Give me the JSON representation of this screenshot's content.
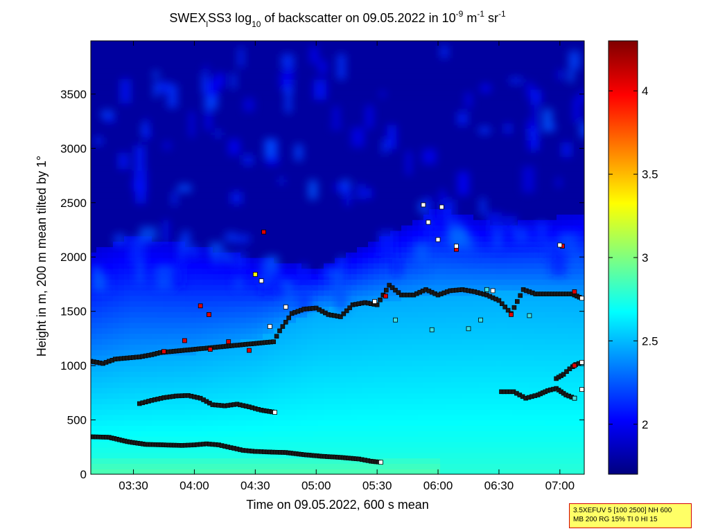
{
  "chart_data": {
    "type": "heatmap",
    "title": {
      "pre": "SWEX",
      "sub1": "l",
      "mid": "SS3 log",
      "sub2": "10",
      "mid2": " of backscatter on 09.05.2022 in 10",
      "sup1": "-9",
      "mid3": " m",
      "sup2": "-1",
      "mid4": " sr",
      "sup3": "-1"
    },
    "xlabel": "Time on 09.05.2022, 600 s mean",
    "ylabel": "Height in m, 200 m mean tilted by 1°",
    "x_range_hours": [
      3.15,
      7.2
    ],
    "y_range_m": [
      0,
      3990
    ],
    "x_ticks": [
      {
        "label": "03:30",
        "value": 3.5
      },
      {
        "label": "04:00",
        "value": 4.0
      },
      {
        "label": "04:30",
        "value": 4.5
      },
      {
        "label": "05:00",
        "value": 5.0
      },
      {
        "label": "05:30",
        "value": 5.5
      },
      {
        "label": "06:00",
        "value": 6.0
      },
      {
        "label": "06:30",
        "value": 6.5
      },
      {
        "label": "07:00",
        "value": 7.0
      }
    ],
    "y_ticks": [
      {
        "label": "0",
        "value": 0
      },
      {
        "label": "500",
        "value": 500
      },
      {
        "label": "1000",
        "value": 1000
      },
      {
        "label": "1500",
        "value": 1500
      },
      {
        "label": "2000",
        "value": 2000
      },
      {
        "label": "2500",
        "value": 2500
      },
      {
        "label": "3000",
        "value": 3000
      },
      {
        "label": "3500",
        "value": 3500
      }
    ],
    "colorbar": {
      "range": [
        1.7,
        4.3
      ],
      "ticks": [
        {
          "label": "2",
          "value": 2.0
        },
        {
          "label": "2.5",
          "value": 2.5
        },
        {
          "label": "3",
          "value": 3.0
        },
        {
          "label": "3.5",
          "value": 3.5
        },
        {
          "label": "4",
          "value": 4.0
        }
      ],
      "colormap": "jet"
    },
    "field_profile": {
      "comment_free_levels": true,
      "ground": {
        "height": 150,
        "value": 2.88
      },
      "boundary_layer_top": [
        {
          "t": 3.15,
          "h": 1000
        },
        {
          "t": 3.5,
          "h": 1080
        },
        {
          "t": 4.0,
          "h": 1120
        },
        {
          "t": 4.5,
          "h": 1250
        },
        {
          "t": 5.0,
          "h": 1500
        },
        {
          "t": 5.5,
          "h": 1600
        },
        {
          "t": 6.0,
          "h": 1650
        },
        {
          "t": 6.5,
          "h": 1680
        },
        {
          "t": 7.2,
          "h": 1650
        }
      ],
      "aerosol_top": [
        {
          "t": 3.15,
          "h": 2050
        },
        {
          "t": 3.5,
          "h": 2200
        },
        {
          "t": 4.0,
          "h": 2100
        },
        {
          "t": 4.5,
          "h": 2000
        },
        {
          "t": 5.0,
          "h": 1900
        },
        {
          "t": 5.5,
          "h": 2150
        },
        {
          "t": 6.0,
          "h": 2450
        },
        {
          "t": 6.5,
          "h": 2300
        },
        {
          "t": 7.2,
          "h": 2400
        }
      ]
    },
    "layers": [
      {
        "name": "lowest",
        "color": "#1a1a1a",
        "points": [
          [
            3.15,
            345
          ],
          [
            3.3,
            340
          ],
          [
            3.45,
            300
          ],
          [
            3.6,
            275
          ],
          [
            3.75,
            270
          ],
          [
            3.9,
            265
          ],
          [
            4.0,
            270
          ],
          [
            4.1,
            280
          ],
          [
            4.2,
            270
          ],
          [
            4.3,
            245
          ],
          [
            4.4,
            220
          ],
          [
            4.5,
            210
          ],
          [
            4.6,
            205
          ],
          [
            4.75,
            200
          ],
          [
            4.9,
            180
          ],
          [
            5.05,
            165
          ],
          [
            5.2,
            155
          ],
          [
            5.35,
            140
          ],
          [
            5.45,
            120
          ],
          [
            5.53,
            110
          ]
        ]
      },
      {
        "name": "middle",
        "color": "#1a1a1a",
        "points": [
          [
            3.55,
            650
          ],
          [
            3.65,
            680
          ],
          [
            3.75,
            705
          ],
          [
            3.85,
            720
          ],
          [
            3.95,
            725
          ],
          [
            4.05,
            700
          ],
          [
            4.15,
            640
          ],
          [
            4.25,
            630
          ],
          [
            4.35,
            645
          ],
          [
            4.45,
            620
          ],
          [
            4.55,
            590
          ],
          [
            4.66,
            570
          ]
        ]
      },
      {
        "name": "evening-low",
        "color": "#1a1a1a",
        "points": [
          [
            6.52,
            760
          ],
          [
            6.62,
            760
          ],
          [
            6.72,
            700
          ],
          [
            6.82,
            730
          ],
          [
            6.9,
            770
          ],
          [
            6.97,
            790
          ],
          [
            7.05,
            730
          ],
          [
            7.12,
            700
          ]
        ]
      },
      {
        "name": "evening-rise",
        "color": "#1a1a1a",
        "points": [
          [
            6.97,
            880
          ],
          [
            7.03,
            920
          ],
          [
            7.08,
            970
          ],
          [
            7.13,
            1010
          ],
          [
            7.18,
            1030
          ]
        ]
      },
      {
        "name": "top-of-bl",
        "color": "#1a1a1a",
        "points": [
          [
            3.15,
            1040
          ],
          [
            3.25,
            1020
          ],
          [
            3.35,
            1060
          ],
          [
            3.45,
            1070
          ],
          [
            3.55,
            1080
          ],
          [
            3.65,
            1100
          ],
          [
            3.72,
            1120
          ],
          [
            4.65,
            1220
          ],
          [
            4.7,
            1320
          ],
          [
            4.8,
            1480
          ],
          [
            4.9,
            1520
          ],
          [
            5.0,
            1530
          ],
          [
            5.1,
            1470
          ],
          [
            5.2,
            1450
          ],
          [
            5.3,
            1560
          ],
          [
            5.4,
            1580
          ],
          [
            5.5,
            1560
          ],
          [
            5.6,
            1740
          ],
          [
            5.7,
            1650
          ],
          [
            5.8,
            1650
          ],
          [
            5.9,
            1700
          ],
          [
            6.0,
            1650
          ],
          [
            6.1,
            1690
          ],
          [
            6.2,
            1700
          ],
          [
            6.3,
            1680
          ],
          [
            6.4,
            1650
          ],
          [
            6.5,
            1600
          ],
          [
            6.6,
            1480
          ],
          [
            6.7,
            1700
          ],
          [
            6.8,
            1660
          ],
          [
            7.1,
            1660
          ],
          [
            7.18,
            1620
          ]
        ]
      }
    ],
    "red_markers": [
      [
        3.75,
        1130
      ],
      [
        3.92,
        1230
      ],
      [
        4.13,
        1150
      ],
      [
        4.28,
        1220
      ],
      [
        4.45,
        1140
      ],
      [
        4.12,
        1470
      ],
      [
        4.05,
        1550
      ],
      [
        4.57,
        2230
      ],
      [
        5.57,
        1640
      ],
      [
        6.15,
        2070
      ],
      [
        6.6,
        1470
      ],
      [
        7.02,
        2100
      ],
      [
        7.12,
        1680
      ],
      [
        7.12,
        1000
      ]
    ],
    "white_markers": [
      [
        4.55,
        1780
      ],
      [
        4.75,
        1540
      ],
      [
        4.62,
        1360
      ],
      [
        5.88,
        2480
      ],
      [
        5.92,
        2320
      ],
      [
        6.0,
        2160
      ],
      [
        6.03,
        2460
      ],
      [
        6.15,
        2100
      ],
      [
        7.0,
        2110
      ],
      [
        6.45,
        1690
      ],
      [
        5.48,
        1590
      ],
      [
        7.18,
        780
      ]
    ],
    "cyan_markers": [
      [
        6.25,
        1340
      ],
      [
        6.35,
        1420
      ],
      [
        5.95,
        1330
      ],
      [
        5.65,
        1420
      ],
      [
        6.75,
        1460
      ],
      [
        6.4,
        1700
      ],
      [
        7.12,
        700
      ]
    ],
    "yellow_markers": [
      [
        4.5,
        1840
      ]
    ]
  },
  "info_box": {
    "line1": "3.5XEFUV 5 [100 2500] NH 600",
    "line2": "MB 200 RG 15% TI 0 HI 15",
    "border_color": "#d40000",
    "background_color": "#ffff66"
  }
}
